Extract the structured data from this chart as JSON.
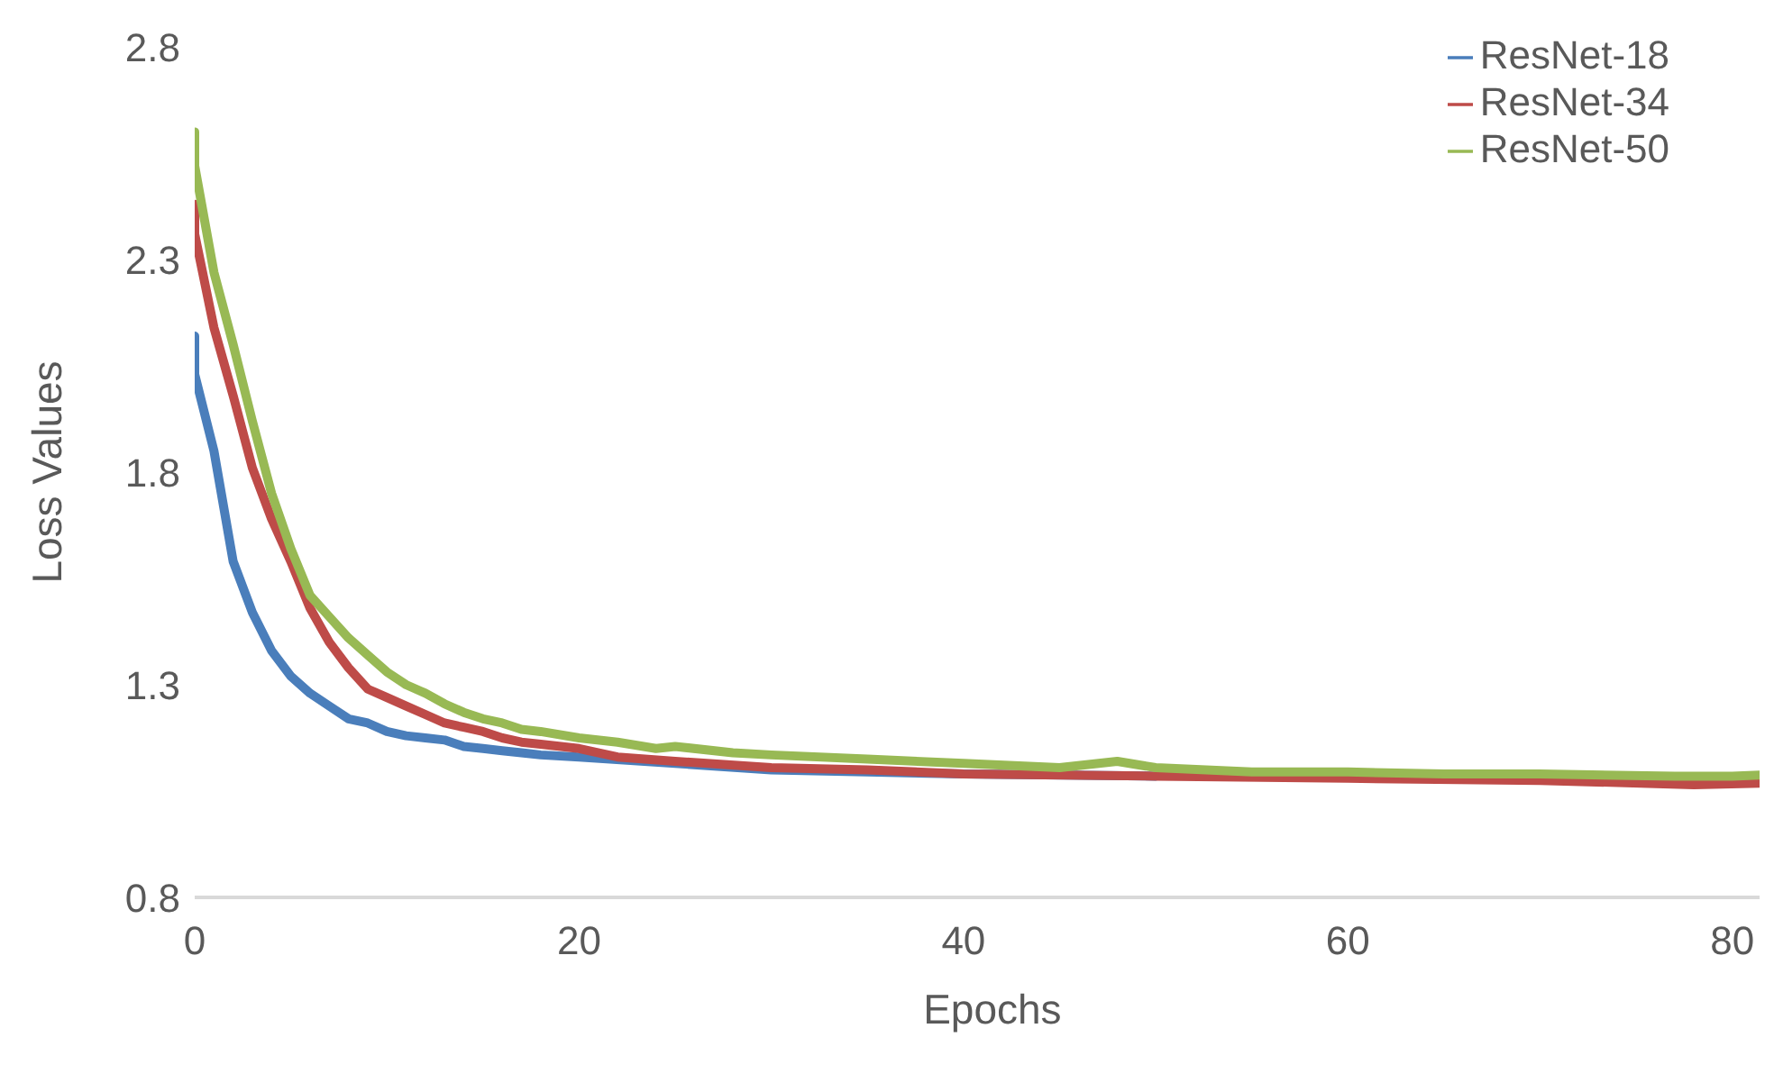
{
  "chart_data": {
    "type": "line",
    "xlabel": "Epochs",
    "ylabel": "Loss Values",
    "xlim": [
      0,
      83
    ],
    "xticks": [
      0,
      20,
      40,
      60,
      80
    ],
    "ylim": [
      0.8,
      2.8
    ],
    "yticks": [
      0.8,
      1.3,
      1.8,
      2.3,
      2.8
    ],
    "grid": false,
    "legend": "top right",
    "marker": "none",
    "line_style": "solid",
    "series": [
      {
        "name": "ResNet-18",
        "color": "#4a7ebb",
        "x": [
          0,
          0,
          1,
          2,
          3,
          4,
          5,
          6,
          7,
          8,
          9,
          10,
          11,
          12,
          13,
          14,
          15,
          16,
          17,
          18,
          20,
          25,
          30,
          35,
          40,
          50
        ],
        "values": [
          2.12,
          2.03,
          1.85,
          1.59,
          1.47,
          1.38,
          1.32,
          1.28,
          1.25,
          1.22,
          1.21,
          1.19,
          1.18,
          1.175,
          1.17,
          1.155,
          1.15,
          1.145,
          1.14,
          1.135,
          1.13,
          1.115,
          1.1,
          1.095,
          1.09,
          1.085
        ]
      },
      {
        "name": "ResNet-34",
        "color": "#be4b48",
        "x": [
          0,
          0,
          1,
          2,
          3,
          4,
          5,
          6,
          7,
          8,
          9,
          10,
          11,
          12,
          13,
          14,
          15,
          16,
          17,
          18,
          20,
          22,
          25,
          30,
          35,
          40,
          50,
          60,
          70,
          78,
          83
        ],
        "values": [
          2.43,
          2.36,
          2.14,
          1.98,
          1.81,
          1.69,
          1.59,
          1.48,
          1.4,
          1.34,
          1.29,
          1.27,
          1.25,
          1.23,
          1.21,
          1.2,
          1.19,
          1.175,
          1.165,
          1.16,
          1.15,
          1.13,
          1.12,
          1.105,
          1.1,
          1.09,
          1.085,
          1.08,
          1.075,
          1.065,
          1.07
        ]
      },
      {
        "name": "ResNet-50",
        "color": "#98b954",
        "x": [
          0,
          0,
          1,
          2,
          3,
          4,
          5,
          6,
          7,
          8,
          9,
          10,
          11,
          12,
          13,
          14,
          15,
          16,
          17,
          18,
          20,
          22,
          24,
          25,
          28,
          30,
          35,
          40,
          45,
          48,
          50,
          55,
          60,
          65,
          70,
          77,
          80,
          83
        ],
        "values": [
          2.6,
          2.52,
          2.27,
          2.1,
          1.92,
          1.75,
          1.62,
          1.51,
          1.46,
          1.41,
          1.37,
          1.33,
          1.3,
          1.28,
          1.255,
          1.235,
          1.22,
          1.21,
          1.195,
          1.19,
          1.175,
          1.165,
          1.15,
          1.155,
          1.14,
          1.135,
          1.125,
          1.115,
          1.105,
          1.12,
          1.105,
          1.095,
          1.095,
          1.09,
          1.09,
          1.085,
          1.085,
          1.09
        ]
      }
    ]
  }
}
